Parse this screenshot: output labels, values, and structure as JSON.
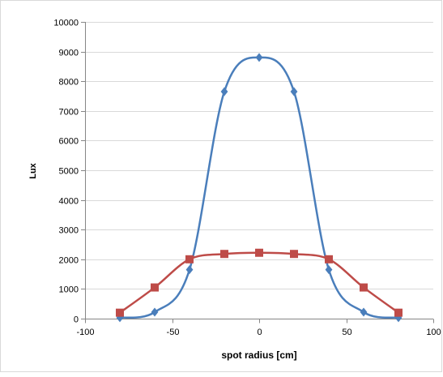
{
  "chart_data": {
    "type": "scatter",
    "xlabel": "spot radius [cm]",
    "ylabel": "Lux",
    "xlim": [
      -100,
      100
    ],
    "ylim": [
      0,
      10000
    ],
    "x_ticks": [
      -100,
      -50,
      0,
      50,
      100
    ],
    "y_ticks": [
      0,
      1000,
      2000,
      3000,
      4000,
      5000,
      6000,
      7000,
      8000,
      9000,
      10000
    ],
    "grid": "horizontal",
    "legend": "none",
    "series": [
      {
        "color": "#4a7ebb",
        "marker": "diamond",
        "smooth": true,
        "points": [
          {
            "x": -80,
            "y": 30
          },
          {
            "x": -60,
            "y": 220
          },
          {
            "x": -40,
            "y": 1650
          },
          {
            "x": -20,
            "y": 7650
          },
          {
            "x": 0,
            "y": 8800
          },
          {
            "x": 20,
            "y": 7650
          },
          {
            "x": 40,
            "y": 1650
          },
          {
            "x": 60,
            "y": 220
          },
          {
            "x": 80,
            "y": 30
          }
        ]
      },
      {
        "color": "#be4b48",
        "marker": "square",
        "smooth": true,
        "points": [
          {
            "x": -80,
            "y": 200
          },
          {
            "x": -60,
            "y": 1050
          },
          {
            "x": -40,
            "y": 2000
          },
          {
            "x": -20,
            "y": 2180
          },
          {
            "x": 0,
            "y": 2220
          },
          {
            "x": 20,
            "y": 2180
          },
          {
            "x": 40,
            "y": 2000
          },
          {
            "x": 60,
            "y": 1050
          },
          {
            "x": 80,
            "y": 200
          }
        ]
      }
    ]
  }
}
